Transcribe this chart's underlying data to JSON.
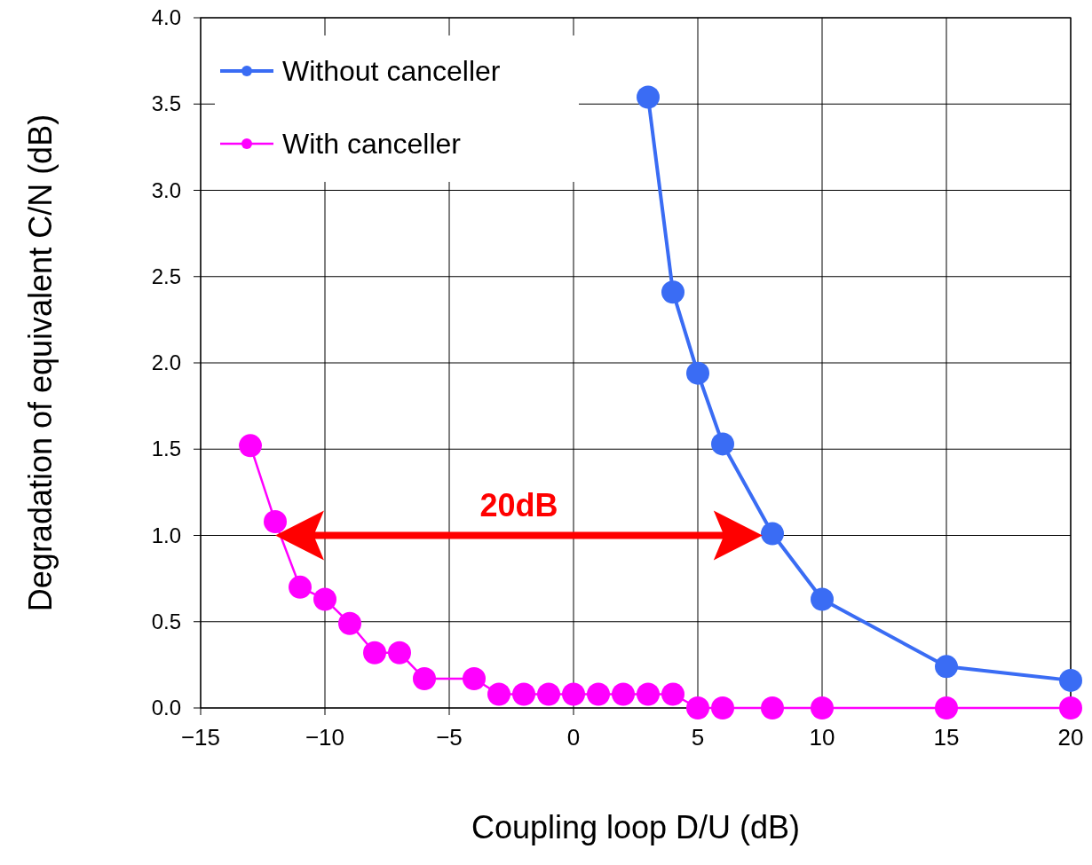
{
  "chart_data": {
    "type": "line",
    "xlabel": "Coupling loop D/U (dB)",
    "ylabel": "Degradation of equivalent C/N (dB)",
    "xlim": [
      -15,
      20
    ],
    "xticks": [
      {
        "value": -15,
        "label": "−15"
      },
      {
        "value": -10,
        "label": "−10"
      },
      {
        "value": -5,
        "label": "−5"
      },
      0,
      5,
      10,
      15,
      20
    ],
    "ylim": [
      0,
      4
    ],
    "yticks": [
      {
        "value": 0,
        "label": "0.0"
      },
      {
        "value": 0.5,
        "label": "0.5"
      },
      {
        "value": 1,
        "label": "1.0"
      },
      {
        "value": 1.5,
        "label": "1.5"
      },
      {
        "value": 2,
        "label": "2.0"
      },
      {
        "value": 2.5,
        "label": "2.5"
      },
      {
        "value": 3,
        "label": "3.0"
      },
      {
        "value": 3.5,
        "label": "3.5"
      },
      {
        "value": 4,
        "label": "4.0"
      }
    ],
    "grid": true,
    "legend": "top left",
    "marker": "circle",
    "line_style": "solid",
    "series": [
      {
        "name": "Without canceller",
        "color": "#3a6cf4",
        "x": [
          3,
          4,
          5,
          6,
          8,
          10,
          15,
          20
        ],
        "values": [
          3.54,
          2.41,
          1.94,
          1.53,
          1.01,
          0.63,
          0.24,
          0.16
        ]
      },
      {
        "name": "With canceller",
        "color": "#ff00ff",
        "x": [
          -13,
          -12,
          -11,
          -10,
          -9,
          -8,
          -7,
          -6,
          -4,
          -3,
          -2,
          -1,
          0,
          1,
          2,
          3,
          4,
          5,
          6,
          8,
          10,
          15,
          20
        ],
        "values": [
          1.52,
          1.08,
          0.7,
          0.63,
          0.49,
          0.32,
          0.32,
          0.17,
          0.17,
          0.08,
          0.08,
          0.08,
          0.08,
          0.08,
          0.08,
          0.08,
          0.08,
          0,
          0,
          0,
          0,
          0,
          0
        ]
      }
    ],
    "annotations": [
      "20dB"
    ]
  }
}
